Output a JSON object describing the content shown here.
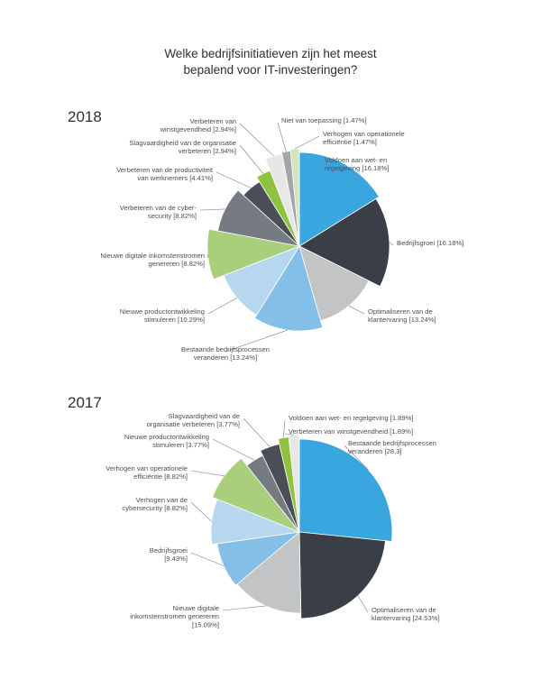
{
  "title_lines": [
    "Welke bedrijfsinitiatieven zijn het meest",
    "bepalend voor IT-investeringen?"
  ],
  "chart_data": [
    {
      "type": "pie",
      "title": "2018",
      "slices": [
        {
          "label": [
            "Voldoen aan wet- en",
            "regelgeving [16.18%]"
          ],
          "value": 16.18,
          "color": "#3aa6e0"
        },
        {
          "label": [
            "Bedrijfsgroei [16.18%]"
          ],
          "value": 16.18,
          "color": "#3a3f47"
        },
        {
          "label": [
            "Optimaliseren van de",
            "klantervaring [13.24%]"
          ],
          "value": 13.24,
          "color": "#c3c4c6"
        },
        {
          "label": [
            "Bestaande bedrijfsprocessen",
            "veranderen [13.24%]"
          ],
          "value": 13.24,
          "color": "#83bfe6"
        },
        {
          "label": [
            "Nieuwe productontwikkeling",
            "stimuleren [10.29%]"
          ],
          "value": 10.29,
          "color": "#b7d7ef"
        },
        {
          "label": [
            "Nieuwe digitale inkomstenstromen",
            "genereren [8.82%]"
          ],
          "value": 8.82,
          "color": "#a9cf7c"
        },
        {
          "label": [
            "Verbeteren van de cyber-",
            "security [8.82%]"
          ],
          "value": 8.82,
          "color": "#767b82"
        },
        {
          "label": [
            "Verbeteren van de productiviteit",
            "van werknemers [4.41%]"
          ],
          "value": 4.41,
          "color": "#4a4f57"
        },
        {
          "label": [
            "Slagvaardigheid van de organisatie",
            "verbeteren [2.94%]"
          ],
          "value": 2.94,
          "color": "#8dc33f"
        },
        {
          "label": [
            "Verbeteren van",
            "winstgevendheid [2.94%]"
          ],
          "value": 2.94,
          "color": "#e7e7e8"
        },
        {
          "label": [
            "Niet van toepassing [1.47%]"
          ],
          "value": 1.47,
          "color": "#a3a5a9"
        },
        {
          "label": [
            "Verhogen van operationele",
            "efficiëntie [1.47%]"
          ],
          "value": 1.47,
          "color": "#d1e6c0"
        }
      ]
    },
    {
      "type": "pie",
      "title": "2017",
      "slices": [
        {
          "label": [
            "Bestaande bedrijfsprocessen",
            "veranderen [28,3]"
          ],
          "value": 28.3,
          "color": "#3aa6e0"
        },
        {
          "label": [
            "Optimaliseren van de",
            "klantervaring [24.53%]"
          ],
          "value": 24.53,
          "color": "#3a3f47"
        },
        {
          "label": [
            "Nieuwe digitale",
            "inkomstenstromen genereren",
            "[15.09%]"
          ],
          "value": 15.09,
          "color": "#c3c4c6"
        },
        {
          "label": [
            "Bedrijfsgroei",
            "[9.43%]"
          ],
          "value": 9.43,
          "color": "#83bfe6"
        },
        {
          "label": [
            "Verhogen van de",
            "cybersecurity [8.82%]"
          ],
          "value": 8.82,
          "color": "#b7d7ef"
        },
        {
          "label": [
            "Verhogen van operationele",
            "efficiëntie [8.82%]"
          ],
          "value": 8.82,
          "color": "#a9cf7c"
        },
        {
          "label": [
            "Nieuwe productontwikkeling",
            "stimuleren [3.77%]"
          ],
          "value": 3.77,
          "color": "#767b82"
        },
        {
          "label": [
            "Slagvaardigheid van de",
            "organisatie verbeteren [3.77%]"
          ],
          "value": 3.77,
          "color": "#4a4f57"
        },
        {
          "label": [
            "Voldoen aan wet- en regelgeving [1.89%]"
          ],
          "value": 1.89,
          "color": "#8dc33f"
        },
        {
          "label": [
            "Verbeteren van winstgevendheid [1.89%]"
          ],
          "value": 1.89,
          "color": "#e7e7e8"
        }
      ]
    }
  ]
}
